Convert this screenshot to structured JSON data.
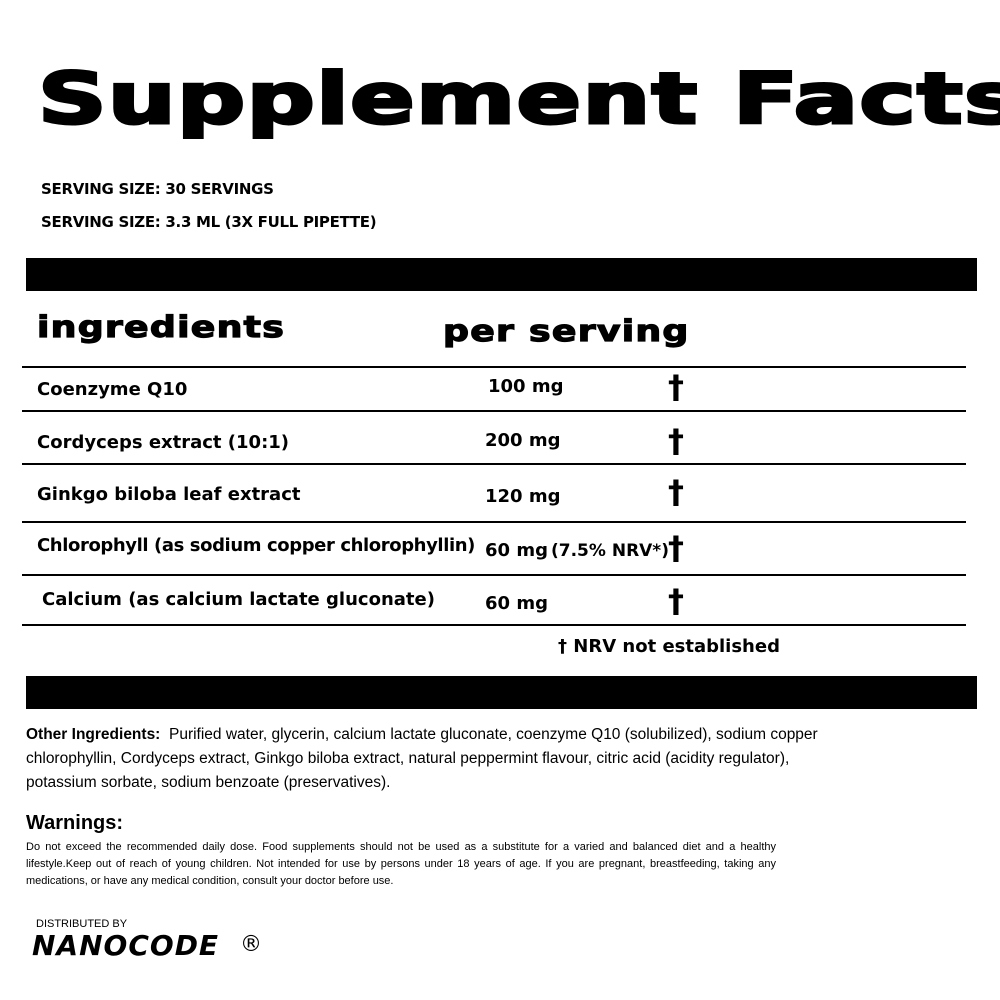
{
  "title": "Supplement Facts",
  "serving_lines": [
    "SERVING SIZE: 30 SERVINGS",
    "SERVING SIZE: 3.3 ML (3X FULL PIPETTE)"
  ],
  "headers": {
    "ingredients": "ingredients",
    "per_serving": "per serving"
  },
  "rows": [
    {
      "name": "Coenzyme Q10",
      "amount": "100 mg",
      "nrv": "",
      "mark": "†"
    },
    {
      "name": "Cordyceps extract (10:1)",
      "amount": "200 mg",
      "nrv": "",
      "mark": "†"
    },
    {
      "name": "Ginkgo biloba leaf extract",
      "amount": "120 mg",
      "nrv": "",
      "mark": "†"
    },
    {
      "name": "Chlorophyll (as sodium copper chlorophyllin)",
      "amount": "60 mg",
      "nrv": "(7.5% NRV*)",
      "mark": "†"
    },
    {
      "name": "Calcium (as calcium lactate gluconate)",
      "amount": "60 mg",
      "nrv": "",
      "mark": "†"
    }
  ],
  "footnote": "† NRV not established",
  "other_ingredients": {
    "label": "Other Ingredients:",
    "text": "Purified water, glycerin, calcium lactate gluconate, coenzyme Q10 (solubilized), sodium copper chlorophyllin, Cordyceps extract, Ginkgo biloba extract, natural peppermint flavour, citric acid (acidity regulator), potassium sorbate, sodium benzoate (preservatives)."
  },
  "warnings": {
    "title": "Warnings:",
    "text": "Do not exceed the recommended daily dose. Food supplements should not be used as a substitute for a varied and balanced diet and a healthy lifestyle.Keep out of reach of young children. Not intended for use by persons under 18 years of age. If you are pregnant, breastfeeding, taking any medications, or have any medical condition,  consult your doctor before use."
  },
  "distributor": {
    "label": "DISTRIBUTED BY",
    "brand": "NANOCODE",
    "reg": "®"
  }
}
